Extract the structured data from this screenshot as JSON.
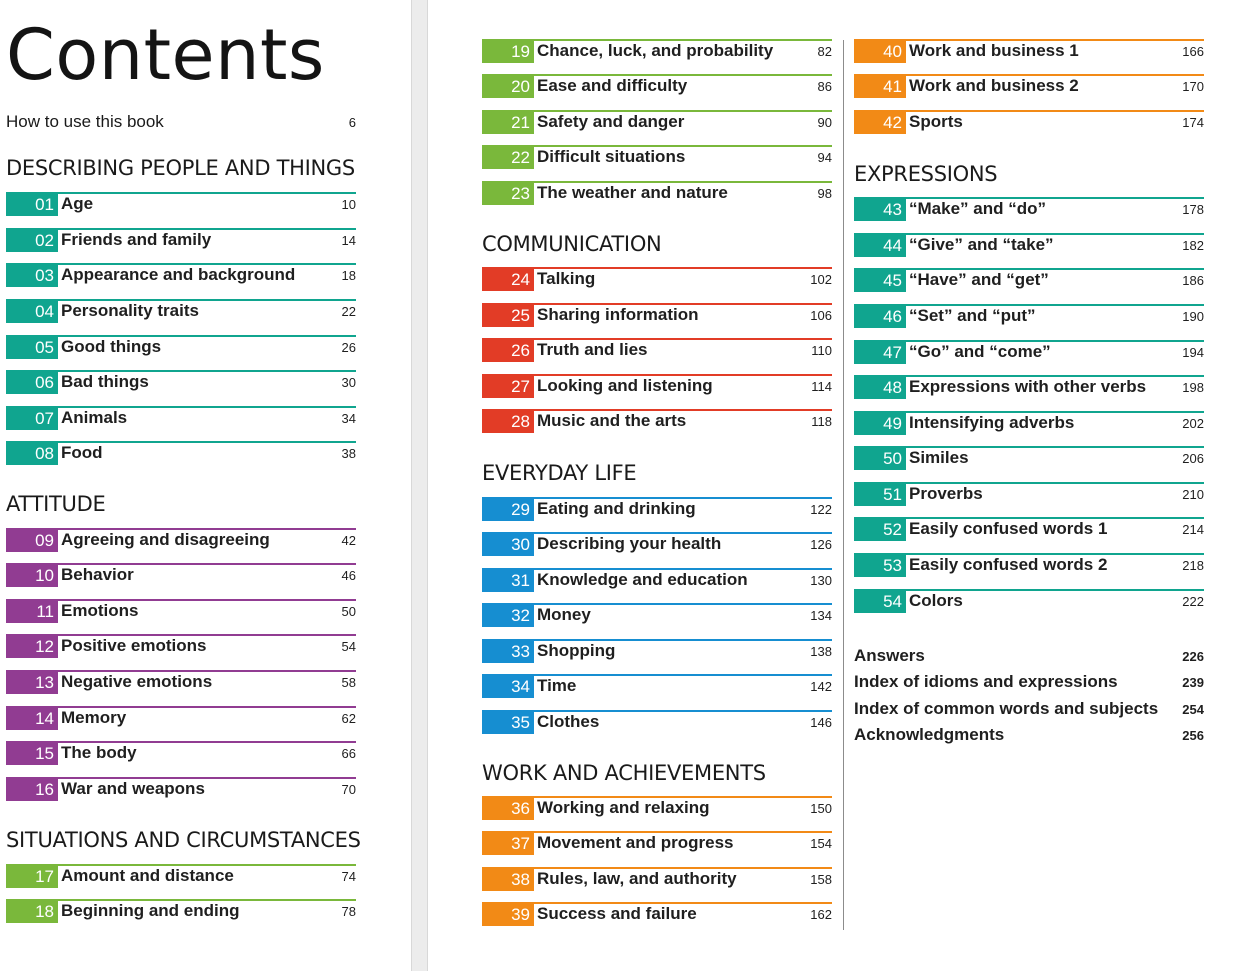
{
  "title": "Contents",
  "how_to": {
    "label": "How to use this book",
    "page": "6"
  },
  "sections": {
    "s1": "DESCRIBING PEOPLE AND THINGS",
    "s2": "ATTITUDE",
    "s3": "SITUATIONS AND CIRCUMSTANCES",
    "s4": "COMMUNICATION",
    "s5": "EVERYDAY LIFE",
    "s6": "WORK AND ACHIEVEMENTS",
    "s7": "EXPRESSIONS"
  },
  "colors": {
    "teal": "#10a58f",
    "purple": "#913c92",
    "green": "#7ab83b",
    "red": "#e23c26",
    "blue": "#168ed1",
    "orange": "#f28a16"
  },
  "entries": [
    {
      "num": "01",
      "label": "Age",
      "page": "10"
    },
    {
      "num": "02",
      "label": "Friends and family",
      "page": "14"
    },
    {
      "num": "03",
      "label": "Appearance and background",
      "page": "18"
    },
    {
      "num": "04",
      "label": "Personality traits",
      "page": "22"
    },
    {
      "num": "05",
      "label": "Good things",
      "page": "26"
    },
    {
      "num": "06",
      "label": "Bad things",
      "page": "30"
    },
    {
      "num": "07",
      "label": "Animals",
      "page": "34"
    },
    {
      "num": "08",
      "label": "Food",
      "page": "38"
    },
    {
      "num": "09",
      "label": "Agreeing and disagreeing",
      "page": "42"
    },
    {
      "num": "10",
      "label": "Behavior",
      "page": "46"
    },
    {
      "num": "11",
      "label": "Emotions",
      "page": "50"
    },
    {
      "num": "12",
      "label": "Positive emotions",
      "page": "54"
    },
    {
      "num": "13",
      "label": "Negative emotions",
      "page": "58"
    },
    {
      "num": "14",
      "label": "Memory",
      "page": "62"
    },
    {
      "num": "15",
      "label": "The body",
      "page": "66"
    },
    {
      "num": "16",
      "label": "War and weapons",
      "page": "70"
    },
    {
      "num": "17",
      "label": "Amount and distance",
      "page": "74"
    },
    {
      "num": "18",
      "label": "Beginning and ending",
      "page": "78"
    },
    {
      "num": "19",
      "label": "Chance, luck, and probability",
      "page": "82"
    },
    {
      "num": "20",
      "label": "Ease and difficulty",
      "page": "86"
    },
    {
      "num": "21",
      "label": "Safety and danger",
      "page": "90"
    },
    {
      "num": "22",
      "label": "Difficult situations",
      "page": "94"
    },
    {
      "num": "23",
      "label": "The weather and nature",
      "page": "98"
    },
    {
      "num": "24",
      "label": "Talking",
      "page": "102"
    },
    {
      "num": "25",
      "label": "Sharing information",
      "page": "106"
    },
    {
      "num": "26",
      "label": "Truth and lies",
      "page": "110"
    },
    {
      "num": "27",
      "label": "Looking and listening",
      "page": "114"
    },
    {
      "num": "28",
      "label": "Music and the arts",
      "page": "118"
    },
    {
      "num": "29",
      "label": "Eating and drinking",
      "page": "122"
    },
    {
      "num": "30",
      "label": "Describing your health",
      "page": "126"
    },
    {
      "num": "31",
      "label": "Knowledge and education",
      "page": "130"
    },
    {
      "num": "32",
      "label": "Money",
      "page": "134"
    },
    {
      "num": "33",
      "label": "Shopping",
      "page": "138"
    },
    {
      "num": "34",
      "label": "Time",
      "page": "142"
    },
    {
      "num": "35",
      "label": "Clothes",
      "page": "146"
    },
    {
      "num": "36",
      "label": "Working and relaxing",
      "page": "150"
    },
    {
      "num": "37",
      "label": "Movement and progress",
      "page": "154"
    },
    {
      "num": "38",
      "label": "Rules, law, and authority",
      "page": "158"
    },
    {
      "num": "39",
      "label": "Success and failure",
      "page": "162"
    },
    {
      "num": "40",
      "label": "Work and business 1",
      "page": "166"
    },
    {
      "num": "41",
      "label": "Work and business 2",
      "page": "170"
    },
    {
      "num": "42",
      "label": "Sports",
      "page": "174"
    },
    {
      "num": "43",
      "label": "“Make” and “do”",
      "page": "178"
    },
    {
      "num": "44",
      "label": "“Give” and “take”",
      "page": "182"
    },
    {
      "num": "45",
      "label": "“Have” and “get”",
      "page": "186"
    },
    {
      "num": "46",
      "label": "“Set” and “put”",
      "page": "190"
    },
    {
      "num": "47",
      "label": "“Go” and “come”",
      "page": "194"
    },
    {
      "num": "48",
      "label": "Expressions with other verbs",
      "page": "198"
    },
    {
      "num": "49",
      "label": "Intensifying adverbs",
      "page": "202"
    },
    {
      "num": "50",
      "label": "Similes",
      "page": "206"
    },
    {
      "num": "51",
      "label": "Proverbs",
      "page": "210"
    },
    {
      "num": "52",
      "label": "Easily confused words 1",
      "page": "214"
    },
    {
      "num": "53",
      "label": "Easily confused words 2",
      "page": "218"
    },
    {
      "num": "54",
      "label": "Colors",
      "page": "222"
    }
  ],
  "back_matter": [
    {
      "label": "Answers",
      "page": "226"
    },
    {
      "label": "Index of idioms and expressions",
      "page": "239"
    },
    {
      "label": "Index of common words and subjects",
      "page": "254"
    },
    {
      "label": "Acknowledgments",
      "page": "256"
    }
  ]
}
